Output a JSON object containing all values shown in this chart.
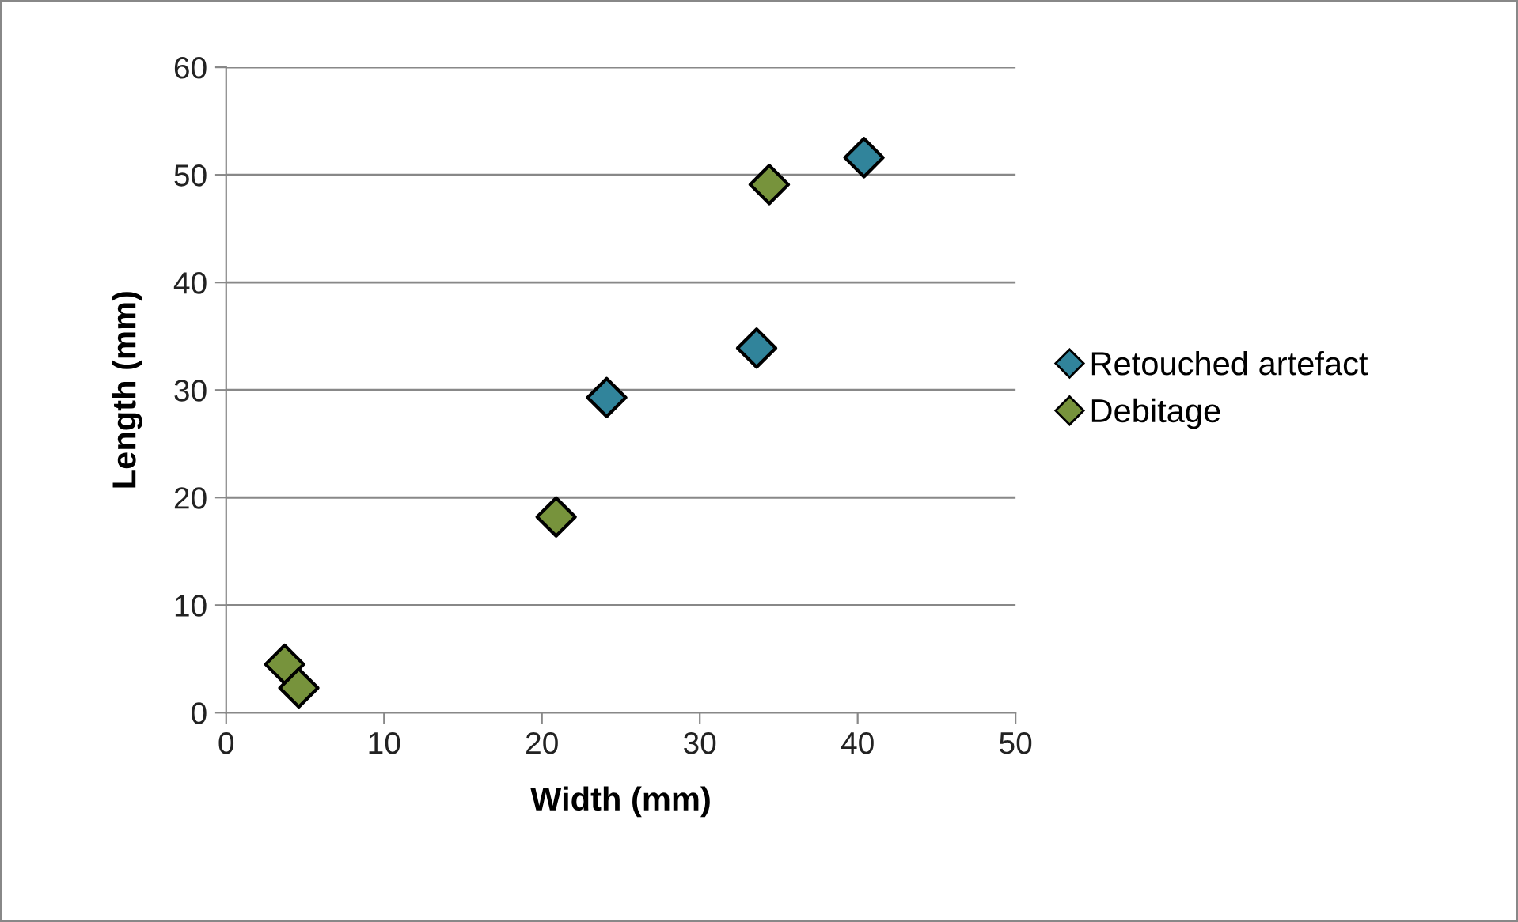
{
  "chart_data": {
    "type": "scatter",
    "xlabel": "Width (mm)",
    "ylabel": "Length (mm)",
    "series": [
      {
        "name": "Retouched artefact",
        "color": "#31849b",
        "x": [
          40.4,
          33.6,
          24.1
        ],
        "values": [
          51.6,
          33.9,
          29.3
        ]
      },
      {
        "name": "Debitage",
        "color": "#77933c",
        "x": [
          34.4,
          20.9,
          3.7,
          4.6
        ],
        "values": [
          49.1,
          18.2,
          4.5,
          2.3
        ]
      }
    ],
    "xlim": [
      0,
      50
    ],
    "xticks": [
      0,
      10,
      20,
      30,
      40,
      50
    ],
    "ylim": [
      0,
      60
    ],
    "yticks": [
      0,
      10,
      20,
      30,
      40,
      50,
      60
    ],
    "grid": "y",
    "legend": "right",
    "marker": "diamond"
  }
}
